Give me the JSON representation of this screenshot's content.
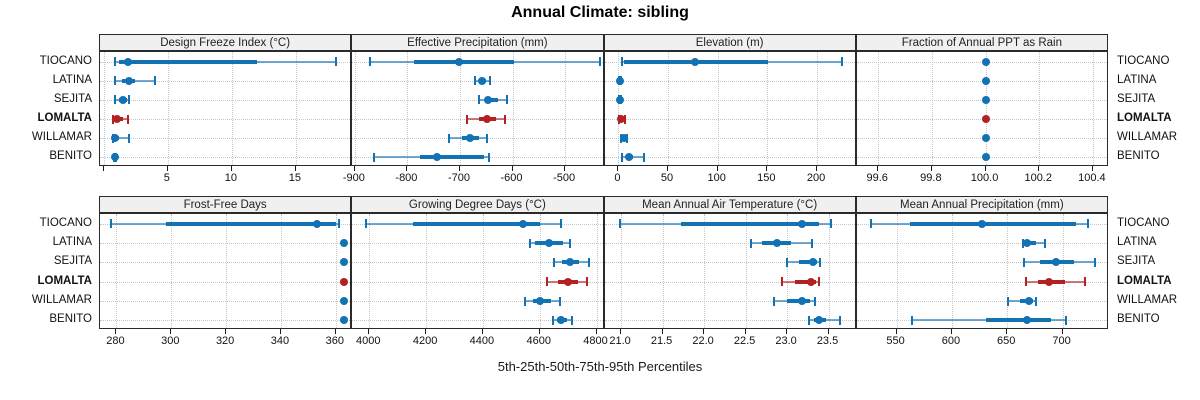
{
  "title": "Annual Climate: sibling",
  "caption": "5th-25th-50th-75th-95th Percentiles",
  "sites": [
    "TIOCANO",
    "LATINA",
    "SEJITA",
    "LOMALTA",
    "WILLAMAR",
    "BENITO"
  ],
  "highlight_site": "LOMALTA",
  "percentiles": [
    5,
    25,
    50,
    75,
    95
  ],
  "colors": {
    "series": "#1272b4",
    "highlight": "#b22222",
    "strip_bg": "#f0f0f0",
    "panel_border": "#2a2a2a",
    "grid": "#c6c6c6",
    "text": "#111111"
  },
  "chart_data": [
    {
      "type": "dotplot-interval",
      "title": "Design Freeze Index (°C)",
      "row": 0,
      "col": 0,
      "xlim": [
        -0.3,
        19.4
      ],
      "ticks": {
        "values": [
          0,
          5,
          10,
          15
        ],
        "labels": [
          "",
          "5",
          "10",
          "15"
        ]
      },
      "series": [
        {
          "site": "TIOCANO",
          "values": [
            0.9,
            1.2,
            1.9,
            12.0,
            18.1
          ]
        },
        {
          "site": "LATINA",
          "values": [
            0.85,
            1.4,
            1.95,
            2.4,
            4.0
          ]
        },
        {
          "site": "SEJITA",
          "values": [
            0.85,
            1.2,
            1.5,
            1.8,
            2.0
          ]
        },
        {
          "site": "LOMALTA",
          "values": [
            0.7,
            0.85,
            1.0,
            1.5,
            1.9
          ]
        },
        {
          "site": "WILLAMAR",
          "values": [
            0.7,
            0.8,
            0.9,
            1.2,
            2.0
          ]
        },
        {
          "site": "BENITO",
          "values": [
            0.78,
            0.82,
            0.86,
            0.9,
            0.95
          ]
        }
      ]
    },
    {
      "type": "dotplot-interval",
      "title": "Effective Precipitation (mm)",
      "row": 0,
      "col": 1,
      "xlim": [
        -905,
        -425
      ],
      "ticks": {
        "values": [
          -900,
          -800,
          -700,
          -600,
          -500
        ],
        "labels": [
          "-900",
          "-800",
          "-700",
          "-600",
          "-500"
        ]
      },
      "series": [
        {
          "site": "TIOCANO",
          "values": [
            -872,
            -788,
            -701,
            -597,
            -434
          ]
        },
        {
          "site": "LATINA",
          "values": [
            -671,
            -664,
            -659,
            -650,
            -643
          ]
        },
        {
          "site": "SEJITA",
          "values": [
            -663,
            -653,
            -646,
            -628,
            -611
          ]
        },
        {
          "site": "LOMALTA",
          "values": [
            -686,
            -663,
            -648,
            -632,
            -614
          ]
        },
        {
          "site": "WILLAMAR",
          "values": [
            -721,
            -696,
            -681,
            -663,
            -649
          ]
        },
        {
          "site": "BENITO",
          "values": [
            -863,
            -776,
            -744,
            -655,
            -645
          ]
        }
      ]
    },
    {
      "type": "dotplot-interval",
      "title": "Elevation (m)",
      "row": 0,
      "col": 2,
      "xlim": [
        -14,
        240
      ],
      "ticks": {
        "values": [
          0,
          50,
          100,
          150,
          200
        ],
        "labels": [
          "0",
          "50",
          "100",
          "150",
          "200"
        ]
      },
      "series": [
        {
          "site": "TIOCANO",
          "values": [
            4,
            6,
            77,
            151,
            225
          ]
        },
        {
          "site": "LATINA",
          "values": [
            1,
            1.5,
            2,
            2.5,
            3
          ]
        },
        {
          "site": "SEJITA",
          "values": [
            1,
            1.5,
            2,
            2.5,
            3
          ]
        },
        {
          "site": "LOMALTA",
          "values": [
            1,
            2,
            3,
            5,
            7
          ]
        },
        {
          "site": "WILLAMAR",
          "values": [
            3,
            5,
            6,
            8,
            9
          ]
        },
        {
          "site": "BENITO",
          "values": [
            4,
            8,
            11,
            15,
            26
          ]
        }
      ]
    },
    {
      "type": "dotplot-interval",
      "title": "Fraction of Annual PPT as Rain",
      "row": 0,
      "col": 3,
      "xlim": [
        99.52,
        100.46
      ],
      "ticks": {
        "values": [
          99.6,
          99.8,
          100.0,
          100.2,
          100.4
        ],
        "labels": [
          "99.6",
          "99.8",
          "100.0",
          "100.2",
          "100.4"
        ]
      },
      "series": [
        {
          "site": "TIOCANO",
          "values": [
            100,
            100,
            100,
            100,
            100
          ]
        },
        {
          "site": "LATINA",
          "values": [
            100,
            100,
            100,
            100,
            100
          ]
        },
        {
          "site": "SEJITA",
          "values": [
            100,
            100,
            100,
            100,
            100
          ]
        },
        {
          "site": "LOMALTA",
          "values": [
            100,
            100,
            100,
            100,
            100
          ]
        },
        {
          "site": "WILLAMAR",
          "values": [
            100,
            100,
            100,
            100,
            100
          ]
        },
        {
          "site": "BENITO",
          "values": [
            100,
            100,
            100,
            100,
            100
          ]
        }
      ]
    },
    {
      "type": "dotplot-interval",
      "title": "Frost-Free Days",
      "row": 1,
      "col": 0,
      "xlim": [
        274,
        366
      ],
      "ticks": {
        "values": [
          280,
          300,
          320,
          340,
          360
        ],
        "labels": [
          "280",
          "300",
          "320",
          "340",
          "360"
        ]
      },
      "series": [
        {
          "site": "TIOCANO",
          "values": [
            278,
            298,
            353,
            360,
            361
          ]
        },
        {
          "site": "LATINA",
          "values": [
            363,
            363,
            363,
            363,
            363
          ]
        },
        {
          "site": "SEJITA",
          "values": [
            363,
            363,
            363,
            363,
            363
          ]
        },
        {
          "site": "LOMALTA",
          "values": [
            363,
            363,
            363,
            363,
            363
          ]
        },
        {
          "site": "WILLAMAR",
          "values": [
            363,
            363,
            363,
            363,
            363
          ]
        },
        {
          "site": "BENITO",
          "values": [
            363,
            363,
            363,
            363,
            363
          ]
        }
      ]
    },
    {
      "type": "dotplot-interval",
      "title": "Growing Degree Days (°C)",
      "row": 1,
      "col": 1,
      "xlim": [
        3940,
        4828
      ],
      "ticks": {
        "values": [
          4000,
          4200,
          4400,
          4600,
          4800
        ],
        "labels": [
          "4000",
          "4200",
          "4400",
          "4600",
          "4800"
        ]
      },
      "series": [
        {
          "site": "TIOCANO",
          "values": [
            3990,
            4155,
            4541,
            4600,
            4676
          ]
        },
        {
          "site": "LATINA",
          "values": [
            4565,
            4585,
            4632,
            4682,
            4708
          ]
        },
        {
          "site": "SEJITA",
          "values": [
            4650,
            4680,
            4705,
            4740,
            4772
          ]
        },
        {
          "site": "LOMALTA",
          "values": [
            4626,
            4665,
            4699,
            4735,
            4767
          ]
        },
        {
          "site": "WILLAMAR",
          "values": [
            4547,
            4575,
            4602,
            4640,
            4673
          ]
        },
        {
          "site": "BENITO",
          "values": [
            4647,
            4660,
            4675,
            4695,
            4714
          ]
        }
      ]
    },
    {
      "type": "dotplot-interval",
      "title": "Mean Annual Air Temperature (°C)",
      "row": 1,
      "col": 2,
      "xlim": [
        20.8,
        23.84
      ],
      "ticks": {
        "values": [
          21.0,
          21.5,
          22.0,
          22.5,
          23.0,
          23.5
        ],
        "labels": [
          "21.0",
          "21.5",
          "22.0",
          "22.5",
          "23.0",
          "23.5"
        ]
      },
      "series": [
        {
          "site": "TIOCANO",
          "values": [
            20.99,
            21.72,
            23.18,
            23.38,
            23.53
          ]
        },
        {
          "site": "LATINA",
          "values": [
            22.57,
            22.7,
            22.88,
            23.05,
            23.3
          ]
        },
        {
          "site": "SEJITA",
          "values": [
            23.0,
            23.15,
            23.31,
            23.36,
            23.4
          ]
        },
        {
          "site": "LOMALTA",
          "values": [
            22.94,
            23.1,
            23.29,
            23.35,
            23.38
          ]
        },
        {
          "site": "WILLAMAR",
          "values": [
            22.84,
            23.0,
            23.18,
            23.28,
            23.34
          ]
        },
        {
          "site": "BENITO",
          "values": [
            23.27,
            23.33,
            23.39,
            23.47,
            23.64
          ]
        }
      ]
    },
    {
      "type": "dotplot-interval",
      "title": "Mean Annual Precipitation (mm)",
      "row": 1,
      "col": 3,
      "xlim": [
        514,
        742
      ],
      "ticks": {
        "values": [
          550,
          600,
          650,
          700
        ],
        "labels": [
          "550",
          "600",
          "650",
          "700"
        ]
      },
      "series": [
        {
          "site": "TIOCANO",
          "values": [
            527,
            562,
            627,
            712,
            723
          ]
        },
        {
          "site": "LATINA",
          "values": [
            664,
            666,
            668,
            676,
            684
          ]
        },
        {
          "site": "SEJITA",
          "values": [
            665,
            680,
            694,
            710,
            729
          ]
        },
        {
          "site": "LOMALTA",
          "values": [
            667,
            678,
            688,
            702,
            720
          ]
        },
        {
          "site": "WILLAMAR",
          "values": [
            651,
            662,
            670,
            673,
            676
          ]
        },
        {
          "site": "BENITO",
          "values": [
            564,
            631,
            668,
            690,
            703
          ]
        }
      ]
    }
  ]
}
